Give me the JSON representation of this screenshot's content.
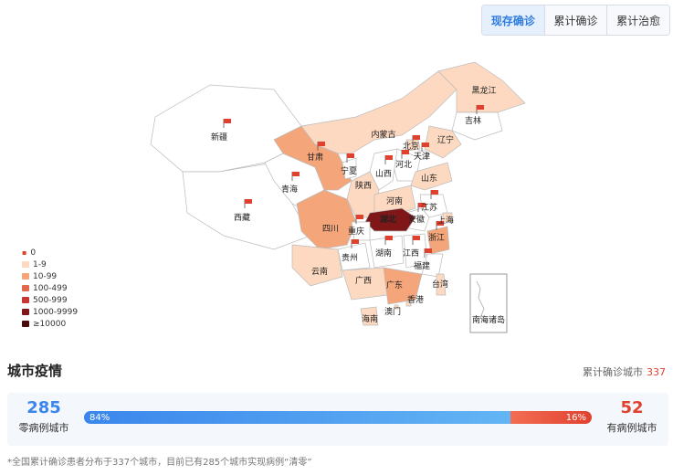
{
  "tabs": [
    {
      "label": "现存确诊",
      "active": true
    },
    {
      "label": "累计确诊",
      "active": false
    },
    {
      "label": "累计治愈",
      "active": false
    }
  ],
  "map": {
    "provinces": [
      {
        "name": "新疆",
        "level": "0",
        "flag": true
      },
      {
        "name": "西藏",
        "level": "0",
        "flag": true
      },
      {
        "name": "青海",
        "level": "0",
        "flag": true
      },
      {
        "name": "甘肃",
        "level": "10-99",
        "flag": true
      },
      {
        "name": "内蒙古",
        "level": "1-9",
        "flag": false
      },
      {
        "name": "黑龙江",
        "level": "1-9",
        "flag": false
      },
      {
        "name": "吉林",
        "level": "0",
        "flag": true
      },
      {
        "name": "辽宁",
        "level": "1-9",
        "flag": false
      },
      {
        "name": "北京",
        "level": "1-9",
        "flag": true
      },
      {
        "name": "天津",
        "level": "0",
        "flag": true
      },
      {
        "name": "河北",
        "level": "0",
        "flag": true
      },
      {
        "name": "山西",
        "level": "0",
        "flag": true
      },
      {
        "name": "宁夏",
        "level": "0",
        "flag": true
      },
      {
        "name": "陕西",
        "level": "1-9",
        "flag": false
      },
      {
        "name": "山东",
        "level": "1-9",
        "flag": false
      },
      {
        "name": "河南",
        "level": "1-9",
        "flag": false
      },
      {
        "name": "江苏",
        "level": "0",
        "flag": true
      },
      {
        "name": "安徽",
        "level": "0",
        "flag": true
      },
      {
        "name": "上海",
        "level": "1-9",
        "flag": false
      },
      {
        "name": "湖北",
        "level": "1000-9999",
        "flag": false
      },
      {
        "name": "四川",
        "level": "10-99",
        "flag": false
      },
      {
        "name": "重庆",
        "level": "0",
        "flag": true
      },
      {
        "name": "浙江",
        "level": "10-99",
        "flag": true
      },
      {
        "name": "湖南",
        "level": "0",
        "flag": true
      },
      {
        "name": "江西",
        "level": "0",
        "flag": true
      },
      {
        "name": "福建",
        "level": "0",
        "flag": true
      },
      {
        "name": "贵州",
        "level": "0",
        "flag": true
      },
      {
        "name": "云南",
        "level": "1-9",
        "flag": false
      },
      {
        "name": "广西",
        "level": "1-9",
        "flag": false
      },
      {
        "name": "广东",
        "level": "10-99",
        "flag": false
      },
      {
        "name": "台湾",
        "level": "1-9",
        "flag": false
      },
      {
        "name": "香港",
        "level": "1-9",
        "flag": false
      },
      {
        "name": "澳门",
        "level": "1-9",
        "flag": false
      },
      {
        "name": "海南",
        "level": "1-9",
        "flag": false
      }
    ],
    "inset_label": "南海诸岛",
    "colors": {
      "0": "#ffffff",
      "1-9": "#fcd9c0",
      "10-99": "#f4a57a",
      "100-499": "#e2694a",
      "500-999": "#c83631",
      "1000-9999": "#7f1618",
      "≥10000": "#4a0b0c"
    }
  },
  "legend": [
    {
      "label": "0",
      "color": "#ffffff",
      "flag": true
    },
    {
      "label": "1-9",
      "color": "#fcd9c0"
    },
    {
      "label": "10-99",
      "color": "#f4a57a"
    },
    {
      "label": "100-499",
      "color": "#e2694a"
    },
    {
      "label": "500-999",
      "color": "#c83631"
    },
    {
      "label": "1000-9999",
      "color": "#7f1618"
    },
    {
      "label": "≥10000",
      "color": "#4a0b0c"
    }
  ],
  "city_section": {
    "title": "城市疫情",
    "cumulative_label": "累计确诊城市",
    "cumulative_value": "337",
    "zero_count": "285",
    "zero_label": "零病例城市",
    "zero_percent": "84%",
    "zero_fraction": 0.84,
    "case_count": "52",
    "case_label": "有病例城市",
    "case_percent": "16%",
    "footnote": "*全国累计确诊患者分布于337个城市，目前已有285个城市实现病例“清零”"
  }
}
